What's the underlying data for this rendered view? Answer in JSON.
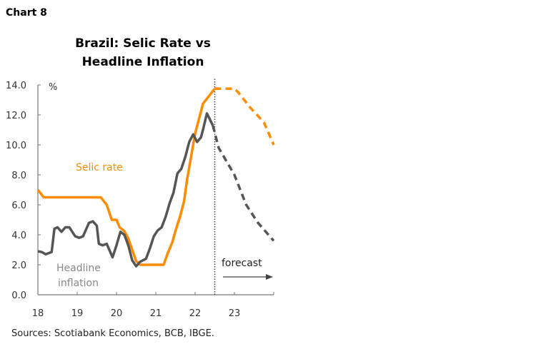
{
  "chart_label": "Chart 8",
  "source": "Sources: Scotiabank Economics, BCB, IBGE.",
  "chart_data": {
    "type": "line",
    "title": [
      "Brazil: Selic Rate vs",
      "Headline Inflation"
    ],
    "ylabel": "%",
    "ylim": [
      0,
      14
    ],
    "yticks": [
      "0.0",
      "2.0",
      "4.0",
      "6.0",
      "8.0",
      "10.0",
      "12.0",
      "14.0"
    ],
    "xlim": [
      18,
      24
    ],
    "xticks": [
      "18",
      "19",
      "20",
      "21",
      "22",
      "23"
    ],
    "forecast_start": 22.5,
    "forecast_label": "forecast",
    "colors": {
      "selic": "#ff8c00",
      "inflation": "#555555"
    },
    "series": [
      {
        "name": "Selic rate",
        "label": "Selic rate",
        "color": "#ff8c00",
        "actual": [
          [
            18.0,
            7.0
          ],
          [
            18.15,
            6.5
          ],
          [
            19.6,
            6.5
          ],
          [
            19.75,
            6.0
          ],
          [
            19.88,
            5.0
          ],
          [
            20.0,
            5.0
          ],
          [
            20.08,
            4.5
          ],
          [
            20.2,
            4.25
          ],
          [
            20.3,
            3.75
          ],
          [
            20.4,
            3.0
          ],
          [
            20.5,
            2.25
          ],
          [
            20.6,
            2.0
          ],
          [
            21.2,
            2.0
          ],
          [
            21.3,
            2.75
          ],
          [
            21.42,
            3.5
          ],
          [
            21.5,
            4.25
          ],
          [
            21.62,
            5.25
          ],
          [
            21.72,
            6.25
          ],
          [
            21.8,
            7.75
          ],
          [
            21.9,
            9.25
          ],
          [
            22.0,
            10.75
          ],
          [
            22.1,
            11.75
          ],
          [
            22.2,
            12.75
          ],
          [
            22.5,
            13.75
          ]
        ],
        "forecast": [
          [
            22.5,
            13.75
          ],
          [
            23.0,
            13.75
          ],
          [
            23.1,
            13.5
          ],
          [
            23.4,
            12.5
          ],
          [
            23.75,
            11.5
          ],
          [
            24.0,
            10.0
          ]
        ]
      },
      {
        "name": "Headline inflation",
        "label": [
          "Headline",
          "inflation"
        ],
        "color": "#555555",
        "actual": [
          [
            18.0,
            2.9
          ],
          [
            18.1,
            2.85
          ],
          [
            18.2,
            2.7
          ],
          [
            18.35,
            2.85
          ],
          [
            18.42,
            4.4
          ],
          [
            18.5,
            4.5
          ],
          [
            18.6,
            4.2
          ],
          [
            18.7,
            4.5
          ],
          [
            18.8,
            4.5
          ],
          [
            18.95,
            3.9
          ],
          [
            19.05,
            3.8
          ],
          [
            19.15,
            3.9
          ],
          [
            19.3,
            4.8
          ],
          [
            19.4,
            4.9
          ],
          [
            19.5,
            4.6
          ],
          [
            19.55,
            3.4
          ],
          [
            19.65,
            3.3
          ],
          [
            19.75,
            3.4
          ],
          [
            19.9,
            2.5
          ],
          [
            20.0,
            3.3
          ],
          [
            20.1,
            4.2
          ],
          [
            20.2,
            4.0
          ],
          [
            20.3,
            3.3
          ],
          [
            20.4,
            2.3
          ],
          [
            20.5,
            1.9
          ],
          [
            20.6,
            2.2
          ],
          [
            20.75,
            2.4
          ],
          [
            20.85,
            3.1
          ],
          [
            20.95,
            3.9
          ],
          [
            21.05,
            4.3
          ],
          [
            21.15,
            4.5
          ],
          [
            21.25,
            5.2
          ],
          [
            21.35,
            6.1
          ],
          [
            21.45,
            6.8
          ],
          [
            21.55,
            8.1
          ],
          [
            21.65,
            8.4
          ],
          [
            21.75,
            9.2
          ],
          [
            21.85,
            10.2
          ],
          [
            21.95,
            10.7
          ],
          [
            22.05,
            10.2
          ],
          [
            22.15,
            10.5
          ],
          [
            22.2,
            11.0
          ],
          [
            22.3,
            12.1
          ],
          [
            22.45,
            11.3
          ]
        ],
        "forecast": [
          [
            22.45,
            11.3
          ],
          [
            22.6,
            9.8
          ],
          [
            23.0,
            8.0
          ],
          [
            23.3,
            6.0
          ],
          [
            23.6,
            4.8
          ],
          [
            24.0,
            3.6
          ]
        ]
      }
    ]
  }
}
